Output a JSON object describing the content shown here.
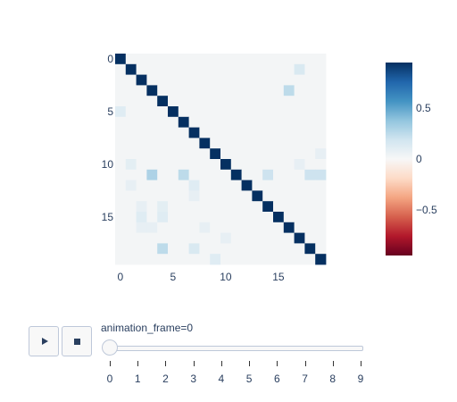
{
  "chart_data": {
    "type": "heatmap",
    "rows": 20,
    "cols": 20,
    "x_ticks": [
      0,
      5,
      10,
      15
    ],
    "y_ticks": [
      0,
      5,
      10,
      15
    ],
    "y_reversed": true,
    "colorscale": "RdBu",
    "zmin": -0.95,
    "zmax": 0.95,
    "colorbar_ticks": [
      0.5,
      0,
      -0.5
    ],
    "colorbar_tick_labels": [
      "0.5",
      "0",
      "−0.5"
    ],
    "diagonal_value": 0.95,
    "background_value": 0.02,
    "off_diagonal": [
      {
        "row": 1,
        "col": 17,
        "value": 0.15
      },
      {
        "row": 3,
        "col": 16,
        "value": 0.25
      },
      {
        "row": 5,
        "col": 0,
        "value": 0.12
      },
      {
        "row": 9,
        "col": 19,
        "value": 0.08
      },
      {
        "row": 10,
        "col": 1,
        "value": 0.1
      },
      {
        "row": 10,
        "col": 17,
        "value": 0.08
      },
      {
        "row": 11,
        "col": 3,
        "value": 0.3
      },
      {
        "row": 11,
        "col": 6,
        "value": 0.25
      },
      {
        "row": 11,
        "col": 14,
        "value": 0.2
      },
      {
        "row": 11,
        "col": 18,
        "value": 0.2
      },
      {
        "row": 11,
        "col": 19,
        "value": 0.2
      },
      {
        "row": 12,
        "col": 1,
        "value": 0.08
      },
      {
        "row": 12,
        "col": 7,
        "value": 0.12
      },
      {
        "row": 13,
        "col": 7,
        "value": 0.08
      },
      {
        "row": 14,
        "col": 2,
        "value": 0.08
      },
      {
        "row": 14,
        "col": 4,
        "value": 0.1
      },
      {
        "row": 15,
        "col": 2,
        "value": 0.12
      },
      {
        "row": 15,
        "col": 4,
        "value": 0.12
      },
      {
        "row": 16,
        "col": 2,
        "value": 0.08
      },
      {
        "row": 16,
        "col": 3,
        "value": 0.08
      },
      {
        "row": 16,
        "col": 8,
        "value": 0.08
      },
      {
        "row": 17,
        "col": 10,
        "value": 0.08
      },
      {
        "row": 18,
        "col": 4,
        "value": 0.25
      },
      {
        "row": 18,
        "col": 7,
        "value": 0.15
      },
      {
        "row": 19,
        "col": 9,
        "value": 0.12
      }
    ]
  },
  "animation": {
    "current_label": "animation_frame=0",
    "frames": [
      "0",
      "1",
      "2",
      "3",
      "4",
      "5",
      "6",
      "7",
      "8",
      "9"
    ],
    "current_index": 0,
    "play_icon": "play-icon",
    "stop_icon": "stop-icon"
  }
}
